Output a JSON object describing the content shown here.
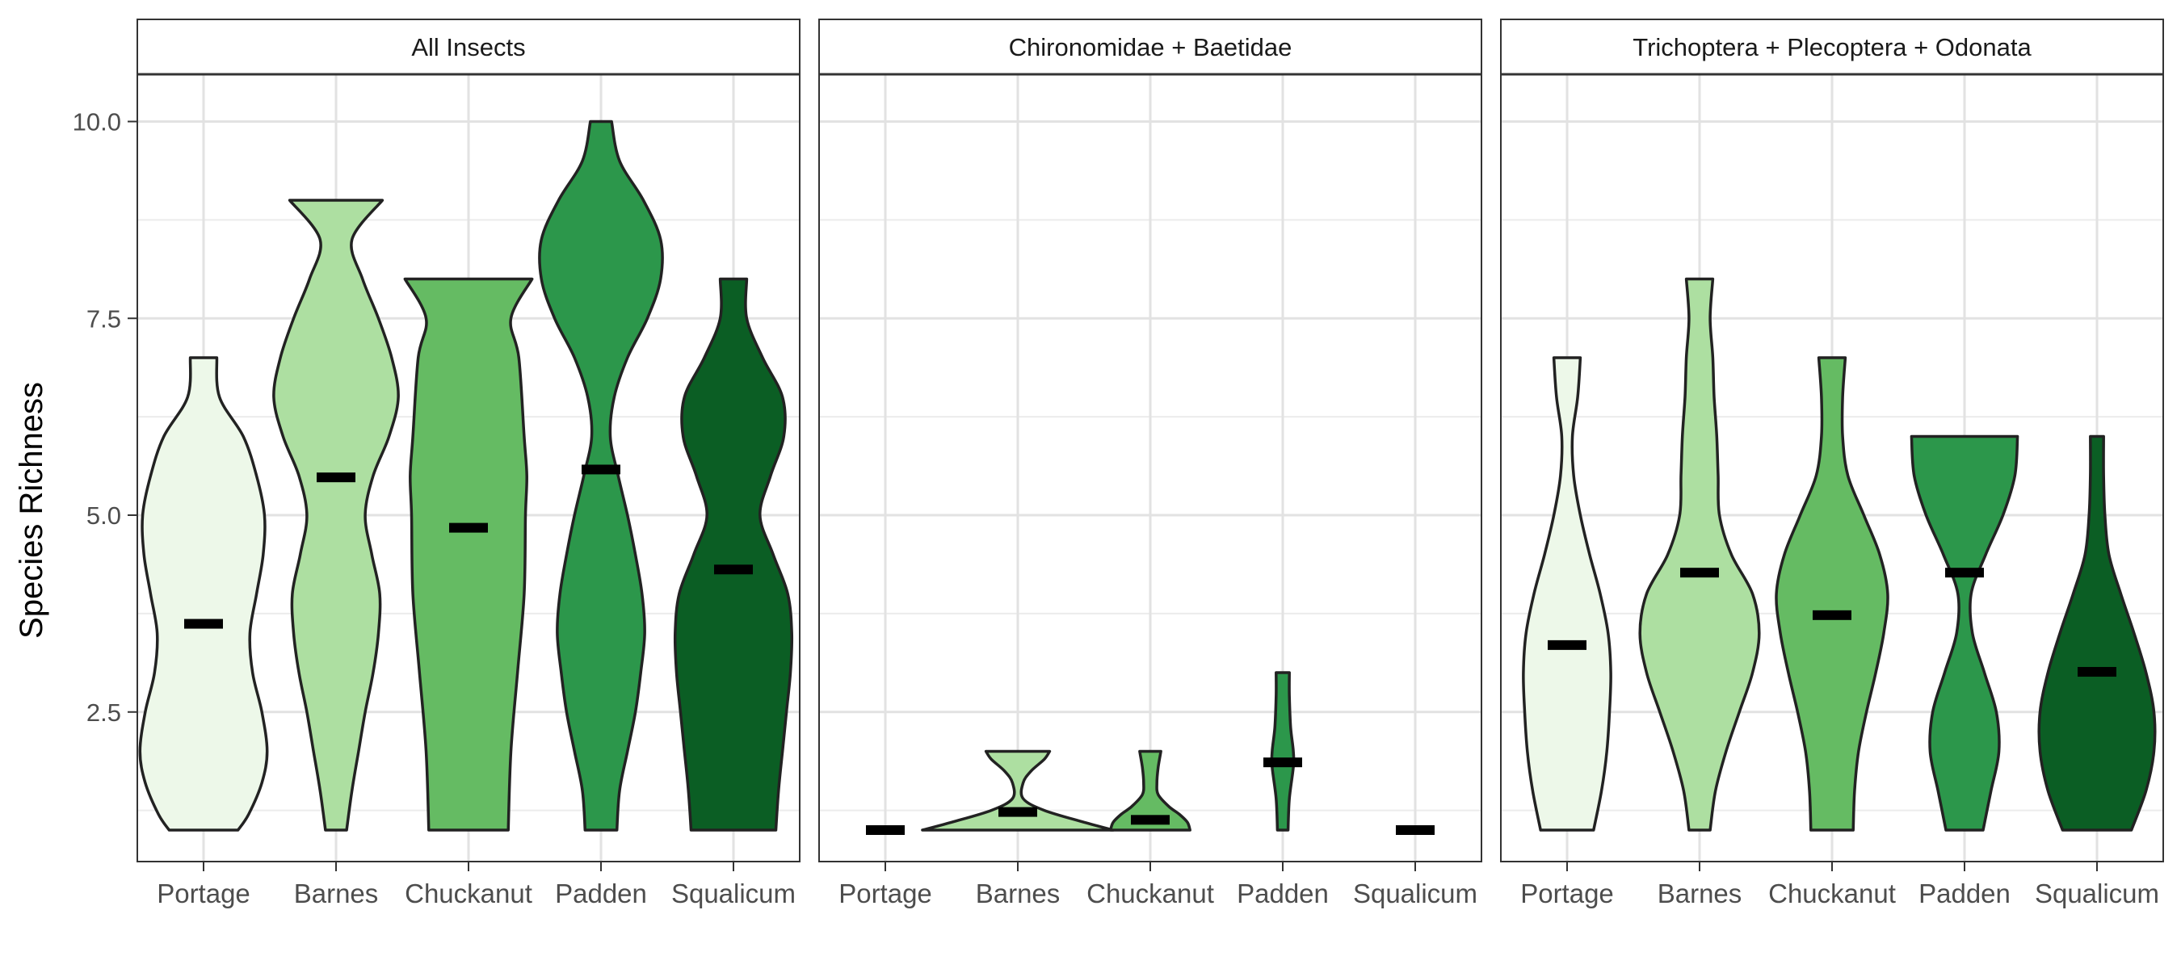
{
  "chart_data": {
    "type": "violin",
    "ylabel": "Species Richness",
    "xlabel": "",
    "ylim": [
      0.6,
      10.6
    ],
    "y_ticks": [
      2.5,
      5.0,
      7.5,
      10.0
    ],
    "y_tick_labels": [
      "2.5",
      "5.0",
      "7.5",
      "10.0"
    ],
    "y_minor_ticks": [
      1.25,
      3.75,
      6.25,
      8.75
    ],
    "grid": true,
    "categories": [
      "Portage",
      "Barnes",
      "Chuckanut",
      "Padden",
      "Squalicum"
    ],
    "category_colors": [
      "#edf8e9",
      "#addfa1",
      "#65bb63",
      "#2c974b",
      "#0b5e24"
    ],
    "summary_marker": "mean",
    "panels": [
      {
        "title": "All Insects",
        "violins": [
          {
            "min": 1,
            "max": 7,
            "mean": 3.62,
            "halfwidth": [
              [
                1,
                0.26
              ],
              [
                1.2,
                0.34
              ],
              [
                1.6,
                0.44
              ],
              [
                2,
                0.48
              ],
              [
                2.5,
                0.44
              ],
              [
                3,
                0.37
              ],
              [
                3.5,
                0.35
              ],
              [
                4,
                0.4
              ],
              [
                4.5,
                0.45
              ],
              [
                5,
                0.46
              ],
              [
                5.5,
                0.4
              ],
              [
                6,
                0.3
              ],
              [
                6.5,
                0.12
              ],
              [
                7,
                0.1
              ]
            ]
          },
          {
            "min": 1,
            "max": 9,
            "mean": 5.48,
            "halfwidth": [
              [
                1,
                0.08
              ],
              [
                1.5,
                0.12
              ],
              [
                2,
                0.17
              ],
              [
                2.5,
                0.22
              ],
              [
                3,
                0.28
              ],
              [
                3.5,
                0.32
              ],
              [
                4,
                0.33
              ],
              [
                4.5,
                0.27
              ],
              [
                5,
                0.22
              ],
              [
                5.5,
                0.28
              ],
              [
                6,
                0.4
              ],
              [
                6.5,
                0.47
              ],
              [
                7,
                0.42
              ],
              [
                7.5,
                0.32
              ],
              [
                8,
                0.2
              ],
              [
                8.5,
                0.12
              ],
              [
                9,
                0.35
              ]
            ]
          },
          {
            "min": 1,
            "max": 8,
            "mean": 4.84,
            "halfwidth": [
              [
                1,
                0.3
              ],
              [
                2,
                0.32
              ],
              [
                3,
                0.37
              ],
              [
                4,
                0.42
              ],
              [
                5,
                0.43
              ],
              [
                5.5,
                0.44
              ],
              [
                6,
                0.42
              ],
              [
                7,
                0.38
              ],
              [
                7.5,
                0.32
              ],
              [
                8,
                0.48
              ]
            ]
          },
          {
            "min": 1,
            "max": 10,
            "mean": 5.58,
            "halfwidth": [
              [
                1,
                0.12
              ],
              [
                1.5,
                0.14
              ],
              [
                2,
                0.2
              ],
              [
                2.5,
                0.26
              ],
              [
                3,
                0.3
              ],
              [
                3.5,
                0.33
              ],
              [
                4,
                0.31
              ],
              [
                4.5,
                0.26
              ],
              [
                5,
                0.2
              ],
              [
                5.5,
                0.13
              ],
              [
                6,
                0.07
              ],
              [
                6.5,
                0.1
              ],
              [
                7,
                0.2
              ],
              [
                7.5,
                0.35
              ],
              [
                8,
                0.45
              ],
              [
                8.5,
                0.45
              ],
              [
                9,
                0.32
              ],
              [
                9.5,
                0.14
              ],
              [
                10,
                0.08
              ]
            ]
          },
          {
            "min": 1,
            "max": 8,
            "mean": 4.31,
            "halfwidth": [
              [
                1,
                0.32
              ],
              [
                1.5,
                0.34
              ],
              [
                2,
                0.37
              ],
              [
                2.5,
                0.4
              ],
              [
                3,
                0.43
              ],
              [
                3.5,
                0.44
              ],
              [
                4,
                0.41
              ],
              [
                4.5,
                0.3
              ],
              [
                5,
                0.2
              ],
              [
                5.5,
                0.28
              ],
              [
                6,
                0.38
              ],
              [
                6.5,
                0.37
              ],
              [
                7,
                0.22
              ],
              [
                7.5,
                0.1
              ],
              [
                8,
                0.1
              ]
            ]
          }
        ]
      },
      {
        "title": "Chironomidae + Baetidae",
        "violins": [
          {
            "min": 1,
            "max": 1,
            "mean": 1.0,
            "halfwidth": []
          },
          {
            "min": 1,
            "max": 2,
            "mean": 1.23,
            "halfwidth": [
              [
                1,
                0.72
              ],
              [
                1.1,
                0.5
              ],
              [
                1.25,
                0.2
              ],
              [
                1.4,
                0.04
              ],
              [
                1.6,
                0.04
              ],
              [
                1.75,
                0.1
              ],
              [
                1.9,
                0.2
              ],
              [
                2,
                0.24
              ]
            ]
          },
          {
            "min": 1,
            "max": 2,
            "mean": 1.13,
            "halfwidth": [
              [
                1,
                0.3
              ],
              [
                1.1,
                0.28
              ],
              [
                1.2,
                0.22
              ],
              [
                1.3,
                0.14
              ],
              [
                1.45,
                0.06
              ],
              [
                1.6,
                0.05
              ],
              [
                1.8,
                0.06
              ],
              [
                2,
                0.08
              ]
            ]
          },
          {
            "min": 1,
            "max": 3,
            "mean": 1.86,
            "halfwidth": [
              [
                1,
                0.04
              ],
              [
                1.4,
                0.05
              ],
              [
                1.8,
                0.08
              ],
              [
                2.0,
                0.08
              ],
              [
                2.3,
                0.06
              ],
              [
                2.7,
                0.05
              ],
              [
                3,
                0.05
              ]
            ]
          },
          {
            "min": 1,
            "max": 1,
            "mean": 1.0,
            "halfwidth": []
          }
        ]
      },
      {
        "title": "Trichoptera + Plecoptera + Odonata",
        "violins": [
          {
            "min": 1,
            "max": 7,
            "mean": 3.35,
            "halfwidth": [
              [
                1,
                0.2
              ],
              [
                1.5,
                0.26
              ],
              [
                2,
                0.3
              ],
              [
                2.5,
                0.32
              ],
              [
                3,
                0.33
              ],
              [
                3.5,
                0.31
              ],
              [
                4,
                0.25
              ],
              [
                4.5,
                0.17
              ],
              [
                5,
                0.1
              ],
              [
                5.5,
                0.05
              ],
              [
                6,
                0.04
              ],
              [
                6.5,
                0.08
              ],
              [
                7,
                0.1
              ]
            ]
          },
          {
            "min": 1,
            "max": 8,
            "mean": 4.27,
            "halfwidth": [
              [
                1,
                0.08
              ],
              [
                1.5,
                0.12
              ],
              [
                2,
                0.2
              ],
              [
                2.5,
                0.3
              ],
              [
                3,
                0.4
              ],
              [
                3.5,
                0.45
              ],
              [
                4,
                0.4
              ],
              [
                4.5,
                0.24
              ],
              [
                5,
                0.15
              ],
              [
                5.5,
                0.14
              ],
              [
                6,
                0.13
              ],
              [
                6.5,
                0.11
              ],
              [
                7,
                0.1
              ],
              [
                7.5,
                0.08
              ],
              [
                8,
                0.1
              ]
            ]
          },
          {
            "min": 1,
            "max": 7,
            "mean": 3.73,
            "halfwidth": [
              [
                1,
                0.16
              ],
              [
                1.5,
                0.17
              ],
              [
                2,
                0.2
              ],
              [
                2.5,
                0.26
              ],
              [
                3,
                0.33
              ],
              [
                3.5,
                0.39
              ],
              [
                4,
                0.42
              ],
              [
                4.5,
                0.36
              ],
              [
                5,
                0.24
              ],
              [
                5.5,
                0.12
              ],
              [
                6,
                0.08
              ],
              [
                6.5,
                0.08
              ],
              [
                7,
                0.1
              ]
            ]
          },
          {
            "min": 1,
            "max": 6,
            "mean": 4.27,
            "halfwidth": [
              [
                1,
                0.14
              ],
              [
                1.5,
                0.2
              ],
              [
                2,
                0.26
              ],
              [
                2.5,
                0.24
              ],
              [
                3,
                0.15
              ],
              [
                3.5,
                0.06
              ],
              [
                4,
                0.05
              ],
              [
                4.5,
                0.16
              ],
              [
                5,
                0.29
              ],
              [
                5.5,
                0.38
              ],
              [
                6,
                0.4
              ]
            ]
          },
          {
            "min": 1,
            "max": 6,
            "mean": 3.01,
            "halfwidth": [
              [
                1,
                0.26
              ],
              [
                1.5,
                0.37
              ],
              [
                2,
                0.43
              ],
              [
                2.5,
                0.43
              ],
              [
                3,
                0.37
              ],
              [
                3.5,
                0.28
              ],
              [
                4,
                0.18
              ],
              [
                4.5,
                0.09
              ],
              [
                5,
                0.06
              ],
              [
                5.5,
                0.05
              ],
              [
                6,
                0.05
              ]
            ]
          }
        ]
      }
    ]
  }
}
